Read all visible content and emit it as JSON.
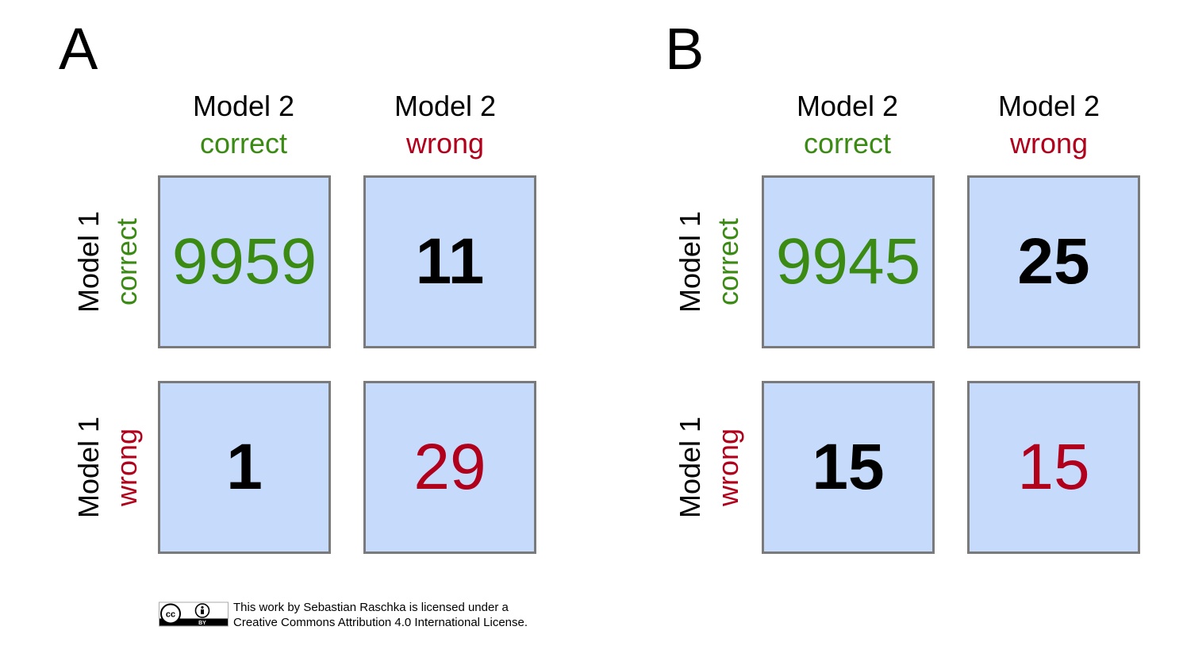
{
  "colors": {
    "correct": "#3b8a14",
    "wrong": "#b1001c",
    "neutral": "#000000",
    "cell_fill": "#c6dbfb",
    "cell_border": "#7a7a7a"
  },
  "panels": [
    {
      "letter": "A",
      "columns": [
        {
          "model": "Model 2",
          "status": "correct"
        },
        {
          "model": "Model 2",
          "status": "wrong"
        }
      ],
      "rows": [
        {
          "model": "Model 1",
          "status": "correct"
        },
        {
          "model": "Model 1",
          "status": "wrong"
        }
      ],
      "cells": [
        [
          "9959",
          "11"
        ],
        [
          "1",
          "29"
        ]
      ]
    },
    {
      "letter": "B",
      "columns": [
        {
          "model": "Model 2",
          "status": "correct"
        },
        {
          "model": "Model 2",
          "status": "wrong"
        }
      ],
      "rows": [
        {
          "model": "Model 1",
          "status": "correct"
        },
        {
          "model": "Model 1",
          "status": "wrong"
        }
      ],
      "cells": [
        [
          "9945",
          "25"
        ],
        [
          "15",
          "15"
        ]
      ]
    }
  ],
  "license": {
    "line1": "This work by Sebastian Raschka is licensed under a",
    "line2": "Creative Commons Attribution 4.0 International License.",
    "badge_icon": "cc-by-badge-icon",
    "badge_cc": "cc",
    "badge_by": "BY"
  }
}
